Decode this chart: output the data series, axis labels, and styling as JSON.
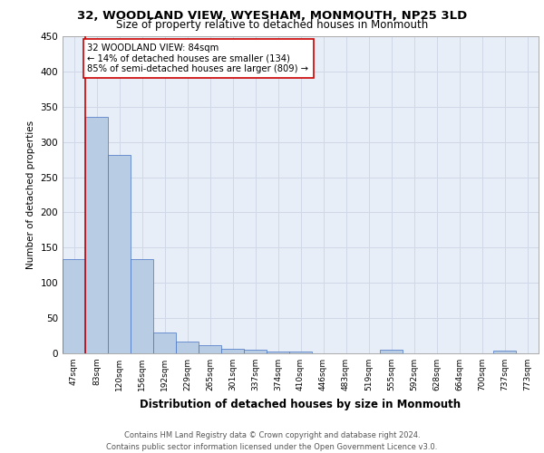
{
  "title": "32, WOODLAND VIEW, WYESHAM, MONMOUTH, NP25 3LD",
  "subtitle": "Size of property relative to detached houses in Monmouth",
  "xlabel": "Distribution of detached houses by size in Monmouth",
  "ylabel": "Number of detached properties",
  "categories": [
    "47sqm",
    "83sqm",
    "120sqm",
    "156sqm",
    "192sqm",
    "229sqm",
    "265sqm",
    "301sqm",
    "337sqm",
    "374sqm",
    "410sqm",
    "446sqm",
    "483sqm",
    "519sqm",
    "555sqm",
    "592sqm",
    "628sqm",
    "664sqm",
    "700sqm",
    "737sqm",
    "773sqm"
  ],
  "values": [
    134,
    335,
    281,
    134,
    29,
    17,
    11,
    6,
    5,
    3,
    3,
    0,
    0,
    0,
    5,
    0,
    0,
    0,
    0,
    4,
    0
  ],
  "bar_color": "#b8cce4",
  "bar_edge_color": "#4472c4",
  "highlight_line_color": "#cc0000",
  "annotation_text": "32 WOODLAND VIEW: 84sqm\n← 14% of detached houses are smaller (134)\n85% of semi-detached houses are larger (809) →",
  "annotation_box_color": "#ffffff",
  "annotation_box_edge_color": "#cc0000",
  "grid_color": "#d0d8e8",
  "background_color": "#e8eef8",
  "ylim": [
    0,
    450
  ],
  "yticks": [
    0,
    50,
    100,
    150,
    200,
    250,
    300,
    350,
    400,
    450
  ],
  "footer_line1": "Contains HM Land Registry data © Crown copyright and database right 2024.",
  "footer_line2": "Contains public sector information licensed under the Open Government Licence v3.0."
}
